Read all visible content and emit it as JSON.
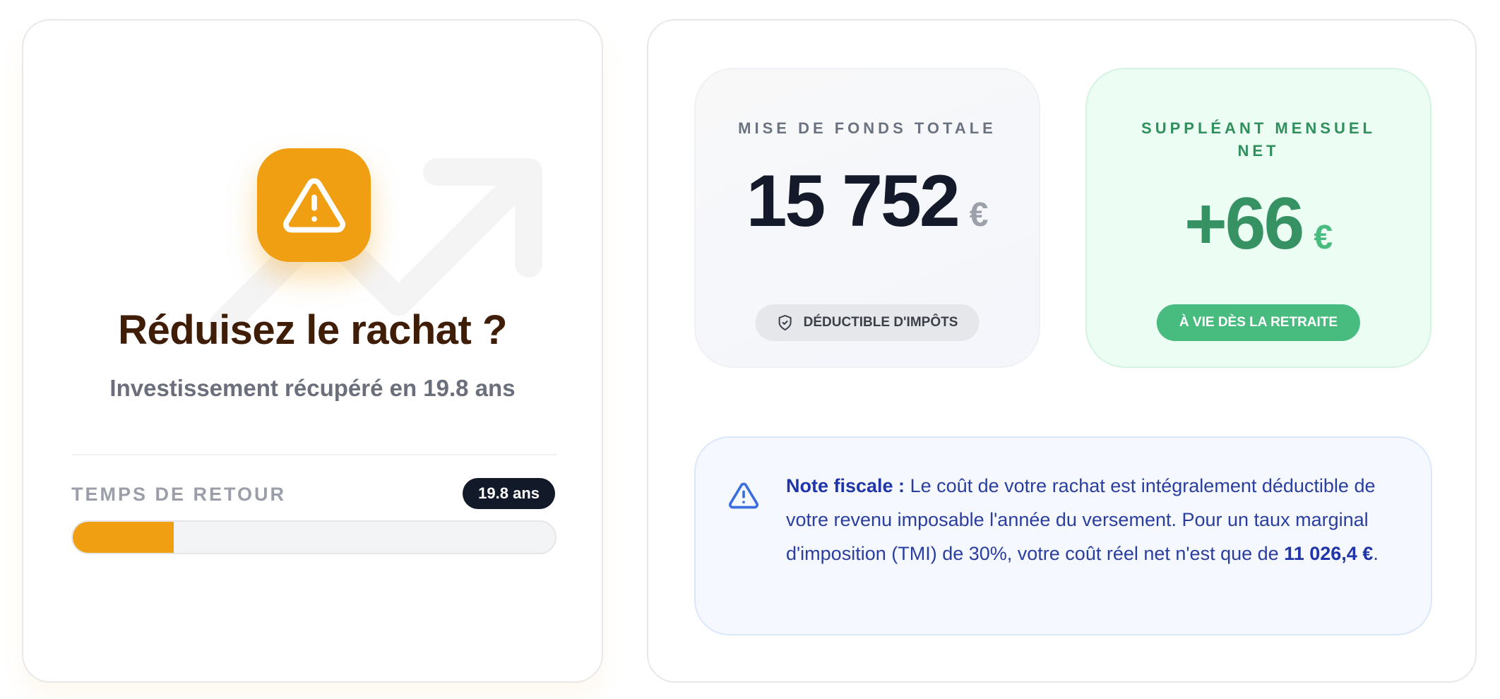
{
  "left_card": {
    "icon": "warning-triangle-icon",
    "background_icon": "trending-up-icon",
    "title": "Réduisez le rachat ?",
    "subtitle": "Investissement récupéré en 19.8 ans",
    "return_label": "TEMPS DE RETOUR",
    "return_badge": "19.8 ans",
    "progress_percent": 21,
    "accent_color": "#f09e12"
  },
  "right_card": {
    "stat_total": {
      "label": "MISE DE FONDS TOTALE",
      "value": "15 752",
      "currency": "€",
      "pill_icon": "shield-check-icon",
      "pill": "DÉDUCTIBLE D'IMPÔTS"
    },
    "stat_monthly": {
      "label": "SUPPLÉANT MENSUEL NET",
      "value": "+66",
      "currency": "€",
      "pill": "À VIE DÈS LA RETRAITE",
      "color": "#379263"
    },
    "note": {
      "icon": "warning-triangle-icon",
      "title": "Note fiscale :",
      "text": " Le coût de votre rachat est intégralement déductible de votre revenu imposable l'année du versement. Pour un taux marginal d'imposition (TMI) de 30%, votre coût réel net n'est que de ",
      "amount": "11 026,4 €",
      "end": "."
    }
  }
}
